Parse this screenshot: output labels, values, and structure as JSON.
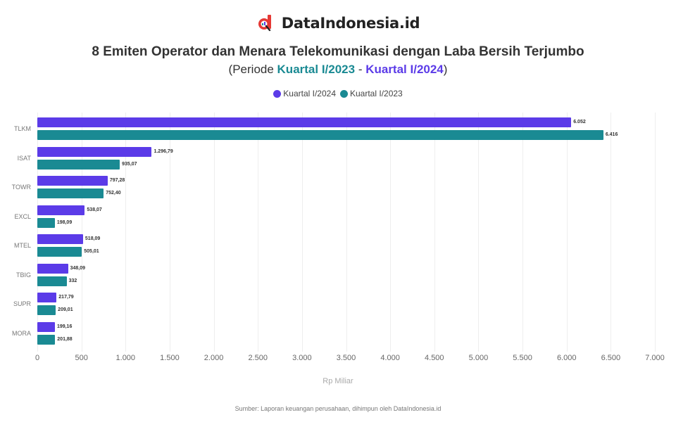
{
  "brand": {
    "name": "DataIndonesia.id"
  },
  "header": {
    "title": "8 Emiten Operator dan Menara Telekomunikasi dengan Laba Bersih Terjumbo",
    "subtitle_prefix": "(Periode ",
    "subtitle_k23": "Kuartal I/2023",
    "subtitle_sep": " - ",
    "subtitle_k24": "Kuartal I/2024",
    "subtitle_suffix": ")"
  },
  "legend": [
    {
      "label": "Kuartal I/2024",
      "color": "#5b3be8"
    },
    {
      "label": "Kuartal I/2023",
      "color": "#1a8a93"
    }
  ],
  "footer": {
    "xlabel": "Rp Miliar",
    "source": "Sumber: Laporan keuangan perusahaan, dihimpun oleh DataIndonesia.id"
  },
  "chart_data": {
    "type": "bar",
    "orientation": "horizontal",
    "title": "8 Emiten Operator dan Menara Telekomunikasi dengan Laba Bersih Terjumbo",
    "subtitle": "(Periode Kuartal I/2023 - Kuartal I/2024)",
    "categories": [
      "TLKM",
      "ISAT",
      "TOWR",
      "EXCL",
      "MTEL",
      "TBIG",
      "SUPR",
      "MORA"
    ],
    "series": [
      {
        "name": "Kuartal I/2024",
        "color": "#5b3be8",
        "values": [
          6052,
          1296.79,
          797.28,
          538.07,
          518.09,
          348.09,
          217.79,
          199.16
        ],
        "labels": [
          "6.052",
          "1.296,79",
          "797,28",
          "538,07",
          "518,09",
          "348,09",
          "217,79",
          "199,16"
        ]
      },
      {
        "name": "Kuartal I/2023",
        "color": "#1a8a93",
        "values": [
          6416,
          935.07,
          752.4,
          198.09,
          505.01,
          332,
          209.01,
          201.88
        ],
        "labels": [
          "6.416",
          "935,07",
          "752,40",
          "198,09",
          "505,01",
          "332",
          "209,01",
          "201,88"
        ]
      }
    ],
    "xlabel": "Rp Miliar",
    "ylabel": "",
    "xlim": [
      0,
      7000
    ],
    "xticks": [
      "0",
      "500",
      "1.000",
      "1.500",
      "2.000",
      "2.500",
      "3.000",
      "3.500",
      "4.000",
      "4.500",
      "5.000",
      "5.500",
      "6.000",
      "6.500",
      "7.000"
    ],
    "grid": true,
    "legend_position": "top"
  }
}
